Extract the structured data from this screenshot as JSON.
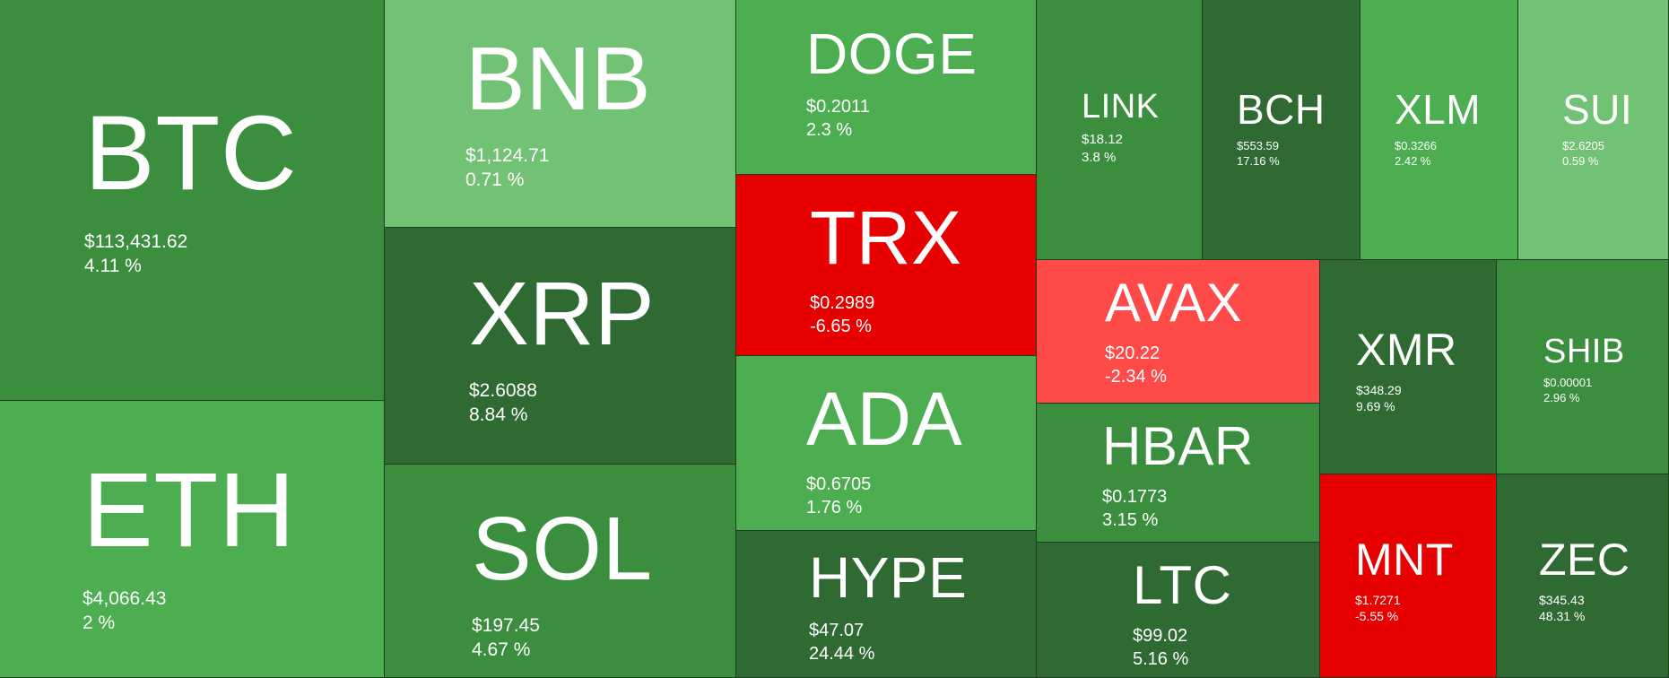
{
  "chart_data": {
    "type": "treemap",
    "title": "",
    "tiles": [
      {
        "symbol": "BTC",
        "price": "$113,431.62",
        "change": "4.11 %",
        "change_value": 4.11,
        "color": "#3c8e3f"
      },
      {
        "symbol": "ETH",
        "price": "$4,066.43",
        "change": "2 %",
        "change_value": 2,
        "color": "#4cae50"
      },
      {
        "symbol": "BNB",
        "price": "$1,124.71",
        "change": "0.71 %",
        "change_value": 0.71,
        "color": "#72c276"
      },
      {
        "symbol": "XRP",
        "price": "$2.6088",
        "change": "8.84 %",
        "change_value": 8.84,
        "color": "#2e6a32"
      },
      {
        "symbol": "SOL",
        "price": "$197.45",
        "change": "4.67 %",
        "change_value": 4.67,
        "color": "#3c8e3f"
      },
      {
        "symbol": "DOGE",
        "price": "$0.2011",
        "change": "2.3 %",
        "change_value": 2.3,
        "color": "#4cae50"
      },
      {
        "symbol": "TRX",
        "price": "$0.2989",
        "change": "-6.65 %",
        "change_value": -6.65,
        "color": "#e60000"
      },
      {
        "symbol": "ADA",
        "price": "$0.6705",
        "change": "1.76 %",
        "change_value": 1.76,
        "color": "#4cae50"
      },
      {
        "symbol": "HYPE",
        "price": "$47.07",
        "change": "24.44 %",
        "change_value": 24.44,
        "color": "#2e6a32"
      },
      {
        "symbol": "LINK",
        "price": "$18.12",
        "change": "3.8 %",
        "change_value": 3.8,
        "color": "#3c8e3f"
      },
      {
        "symbol": "BCH",
        "price": "$553.59",
        "change": "17.16 %",
        "change_value": 17.16,
        "color": "#2e6a32"
      },
      {
        "symbol": "XLM",
        "price": "$0.3266",
        "change": "2.42 %",
        "change_value": 2.42,
        "color": "#4cae50"
      },
      {
        "symbol": "SUI",
        "price": "$2.6205",
        "change": "0.59 %",
        "change_value": 0.59,
        "color": "#72c276"
      },
      {
        "symbol": "AVAX",
        "price": "$20.22",
        "change": "-2.34 %",
        "change_value": -2.34,
        "color": "#ff4a4a"
      },
      {
        "symbol": "HBAR",
        "price": "$0.1773",
        "change": "3.15 %",
        "change_value": 3.15,
        "color": "#3c8e3f"
      },
      {
        "symbol": "LTC",
        "price": "$99.02",
        "change": "5.16 %",
        "change_value": 5.16,
        "color": "#2e6a32"
      },
      {
        "symbol": "XMR",
        "price": "$348.29",
        "change": "9.69 %",
        "change_value": 9.69,
        "color": "#2e6a32"
      },
      {
        "symbol": "SHIB",
        "price": "$0.00001",
        "change": "2.96 %",
        "change_value": 2.96,
        "color": "#3c8e3f"
      },
      {
        "symbol": "MNT",
        "price": "$1.7271",
        "change": "-5.55 %",
        "change_value": -5.55,
        "color": "#e60000"
      },
      {
        "symbol": "ZEC",
        "price": "$345.43",
        "change": "48.31 %",
        "change_value": 48.31,
        "color": "#2e6a32"
      }
    ]
  }
}
